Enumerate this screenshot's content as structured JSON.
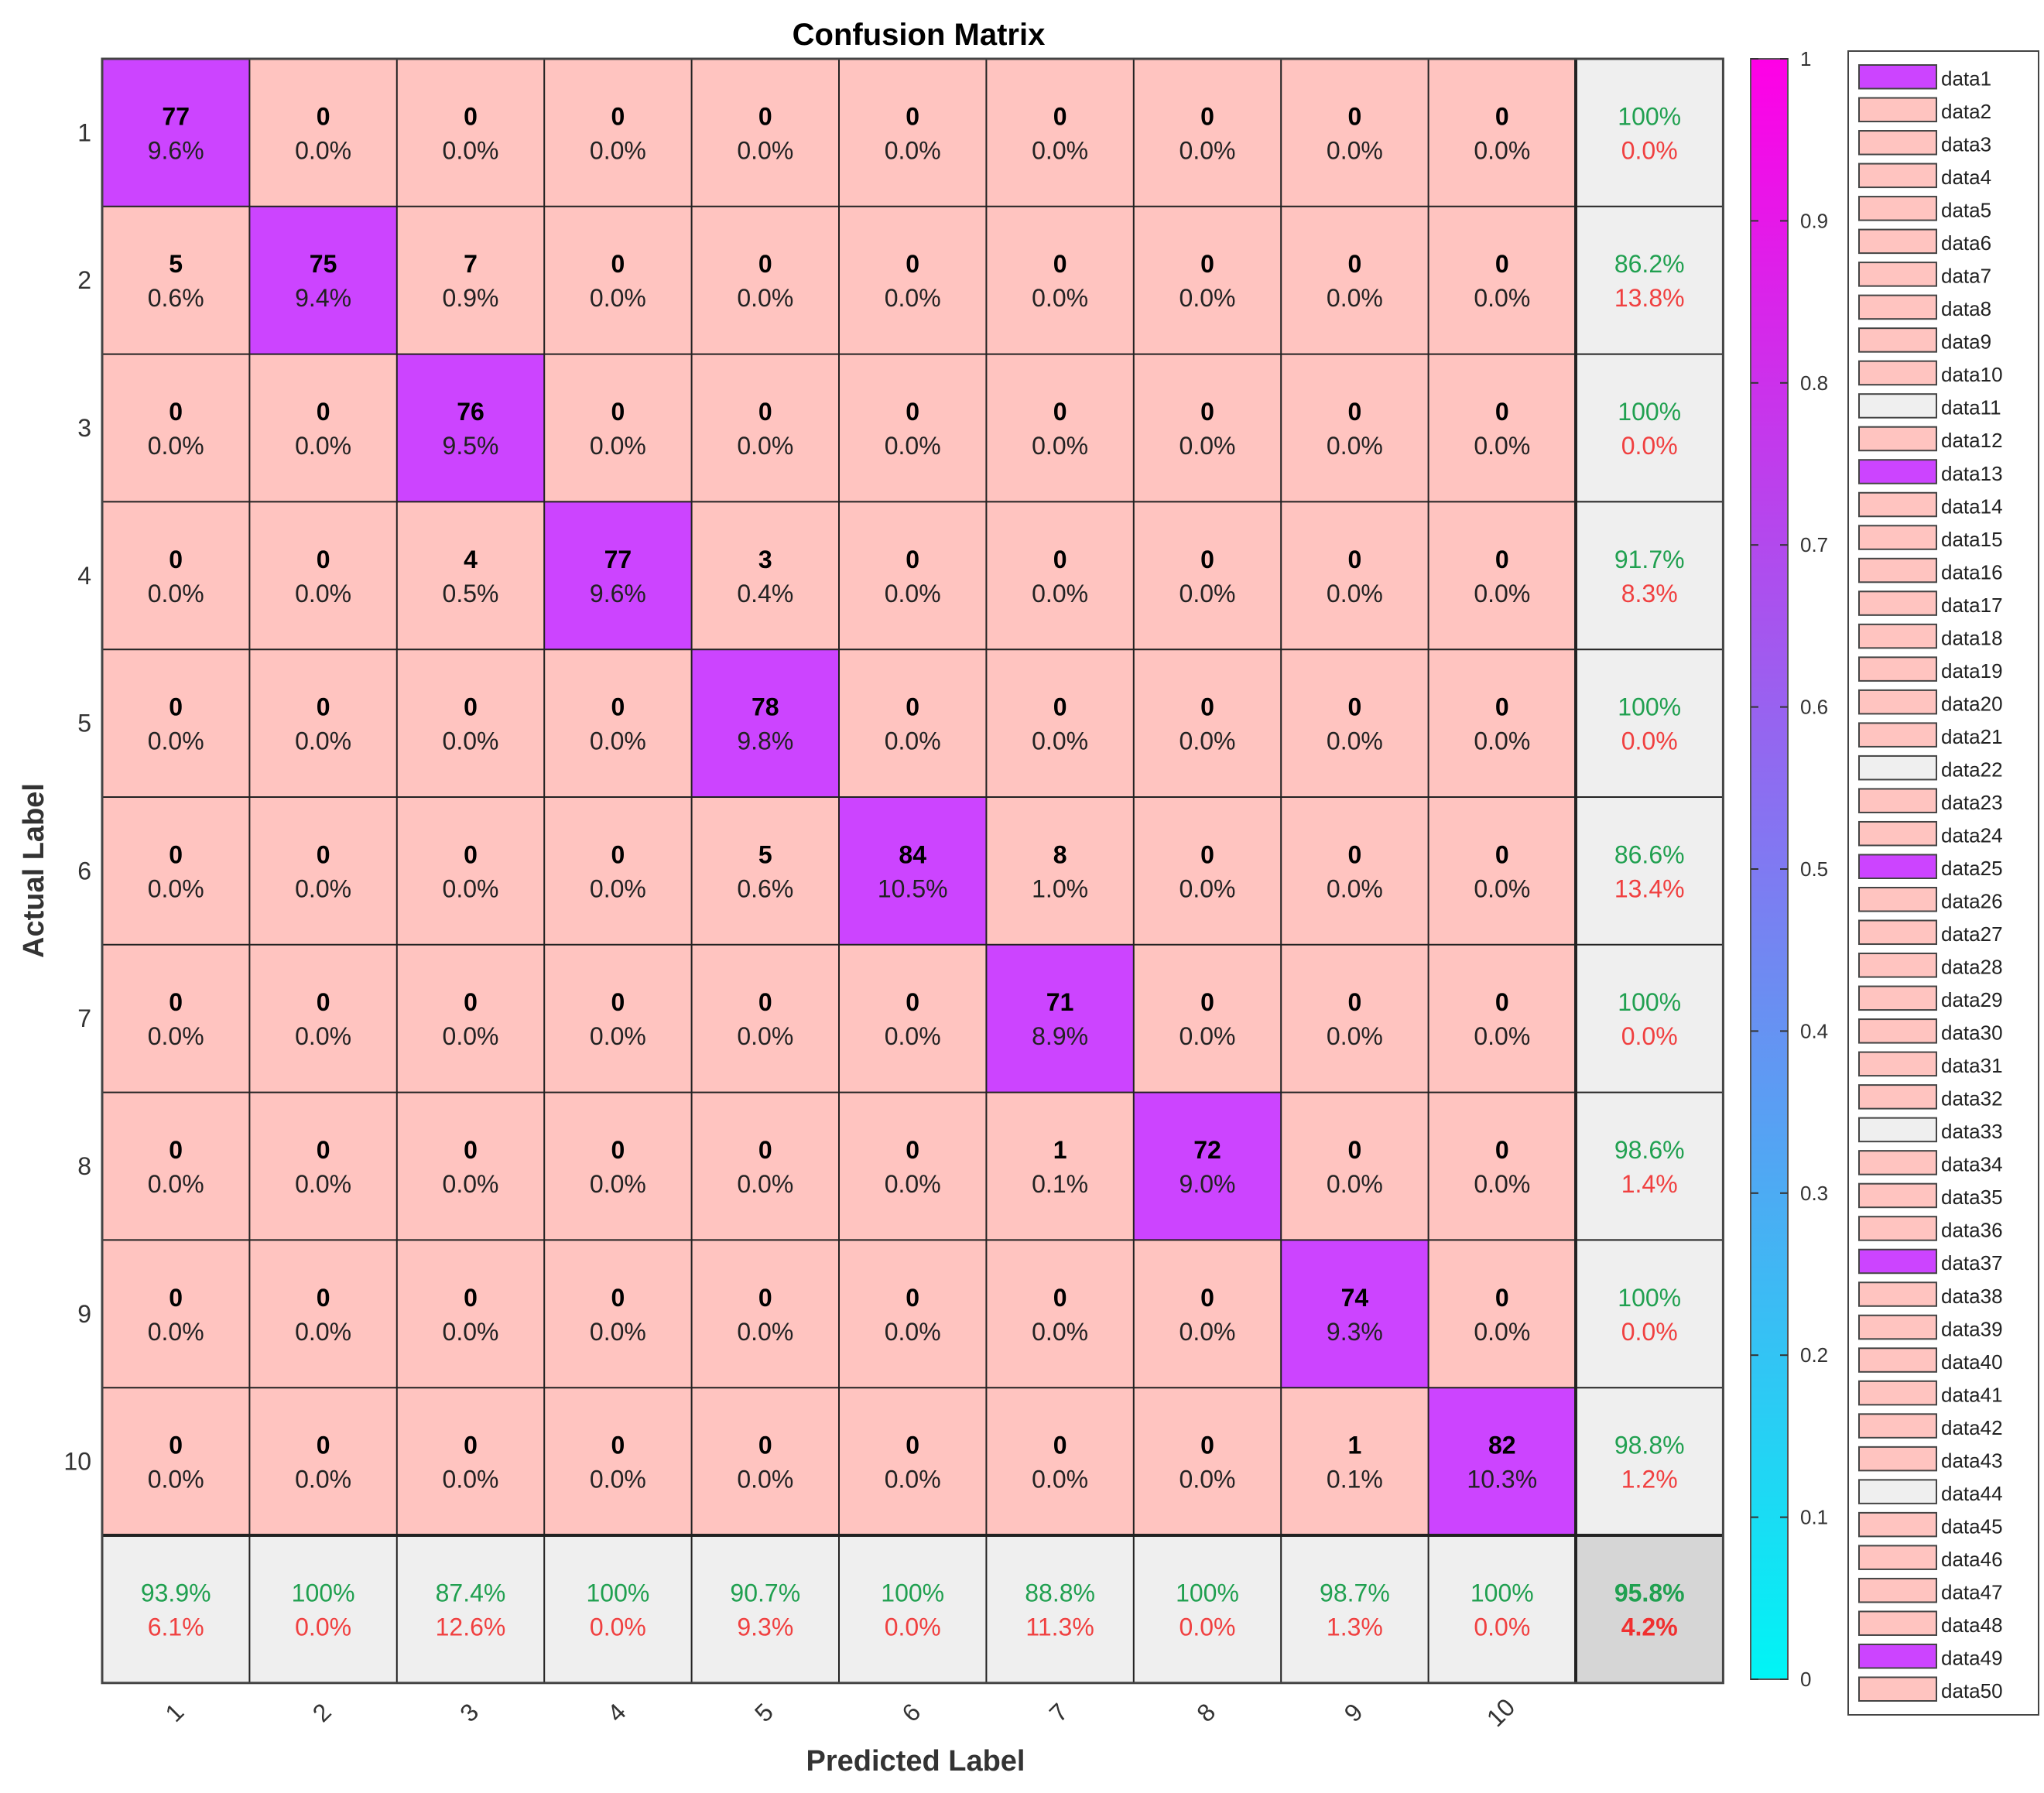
{
  "chart_data": {
    "type": "heatmap",
    "title": "Confusion Matrix",
    "xlabel": "Predicted Label",
    "ylabel": "Actual Label",
    "row_labels": [
      "1",
      "2",
      "3",
      "4",
      "5",
      "6",
      "7",
      "8",
      "9",
      "10"
    ],
    "col_labels": [
      "1",
      "2",
      "3",
      "4",
      "5",
      "6",
      "7",
      "8",
      "9",
      "10"
    ],
    "counts": [
      [
        77,
        0,
        0,
        0,
        0,
        0,
        0,
        0,
        0,
        0
      ],
      [
        5,
        75,
        7,
        0,
        0,
        0,
        0,
        0,
        0,
        0
      ],
      [
        0,
        0,
        76,
        0,
        0,
        0,
        0,
        0,
        0,
        0
      ],
      [
        0,
        0,
        4,
        77,
        3,
        0,
        0,
        0,
        0,
        0
      ],
      [
        0,
        0,
        0,
        0,
        78,
        0,
        0,
        0,
        0,
        0
      ],
      [
        0,
        0,
        0,
        0,
        5,
        84,
        8,
        0,
        0,
        0
      ],
      [
        0,
        0,
        0,
        0,
        0,
        0,
        71,
        0,
        0,
        0
      ],
      [
        0,
        0,
        0,
        0,
        0,
        0,
        1,
        72,
        0,
        0
      ],
      [
        0,
        0,
        0,
        0,
        0,
        0,
        0,
        0,
        74,
        0
      ],
      [
        0,
        0,
        0,
        0,
        0,
        0,
        0,
        0,
        1,
        82
      ]
    ],
    "percents": [
      [
        "9.6%",
        "0.0%",
        "0.0%",
        "0.0%",
        "0.0%",
        "0.0%",
        "0.0%",
        "0.0%",
        "0.0%",
        "0.0%"
      ],
      [
        "0.6%",
        "9.4%",
        "0.9%",
        "0.0%",
        "0.0%",
        "0.0%",
        "0.0%",
        "0.0%",
        "0.0%",
        "0.0%"
      ],
      [
        "0.0%",
        "0.0%",
        "9.5%",
        "0.0%",
        "0.0%",
        "0.0%",
        "0.0%",
        "0.0%",
        "0.0%",
        "0.0%"
      ],
      [
        "0.0%",
        "0.0%",
        "0.5%",
        "9.6%",
        "0.4%",
        "0.0%",
        "0.0%",
        "0.0%",
        "0.0%",
        "0.0%"
      ],
      [
        "0.0%",
        "0.0%",
        "0.0%",
        "0.0%",
        "9.8%",
        "0.0%",
        "0.0%",
        "0.0%",
        "0.0%",
        "0.0%"
      ],
      [
        "0.0%",
        "0.0%",
        "0.0%",
        "0.0%",
        "0.6%",
        "10.5%",
        "1.0%",
        "0.0%",
        "0.0%",
        "0.0%"
      ],
      [
        "0.0%",
        "0.0%",
        "0.0%",
        "0.0%",
        "0.0%",
        "0.0%",
        "8.9%",
        "0.0%",
        "0.0%",
        "0.0%"
      ],
      [
        "0.0%",
        "0.0%",
        "0.0%",
        "0.0%",
        "0.0%",
        "0.0%",
        "0.1%",
        "9.0%",
        "0.0%",
        "0.0%"
      ],
      [
        "0.0%",
        "0.0%",
        "0.0%",
        "0.0%",
        "0.0%",
        "0.0%",
        "0.0%",
        "0.0%",
        "9.3%",
        "0.0%"
      ],
      [
        "0.0%",
        "0.0%",
        "0.0%",
        "0.0%",
        "0.0%",
        "0.0%",
        "0.0%",
        "0.0%",
        "0.1%",
        "10.3%"
      ]
    ],
    "row_summary": [
      {
        "correct": "100%",
        "error": "0.0%"
      },
      {
        "correct": "86.2%",
        "error": "13.8%"
      },
      {
        "correct": "100%",
        "error": "0.0%"
      },
      {
        "correct": "91.7%",
        "error": "8.3%"
      },
      {
        "correct": "100%",
        "error": "0.0%"
      },
      {
        "correct": "86.6%",
        "error": "13.4%"
      },
      {
        "correct": "100%",
        "error": "0.0%"
      },
      {
        "correct": "98.6%",
        "error": "1.4%"
      },
      {
        "correct": "100%",
        "error": "0.0%"
      },
      {
        "correct": "98.8%",
        "error": "1.2%"
      }
    ],
    "col_summary": [
      {
        "correct": "93.9%",
        "error": "6.1%"
      },
      {
        "correct": "100%",
        "error": "0.0%"
      },
      {
        "correct": "87.4%",
        "error": "12.6%"
      },
      {
        "correct": "100%",
        "error": "0.0%"
      },
      {
        "correct": "90.7%",
        "error": "9.3%"
      },
      {
        "correct": "100%",
        "error": "0.0%"
      },
      {
        "correct": "88.8%",
        "error": "11.3%"
      },
      {
        "correct": "100%",
        "error": "0.0%"
      },
      {
        "correct": "98.7%",
        "error": "1.3%"
      },
      {
        "correct": "100%",
        "error": "0.0%"
      }
    ],
    "overall": {
      "correct": "95.8%",
      "error": "4.2%"
    },
    "colorbar": {
      "range": [
        0,
        1
      ],
      "ticks": [
        "0",
        "0.1",
        "0.2",
        "0.3",
        "0.4",
        "0.5",
        "0.6",
        "0.7",
        "0.8",
        "0.9",
        "1"
      ],
      "color_low": "#00f5f5",
      "color_high": "#ff00e6"
    },
    "colors": {
      "diagonal": "#cc44ff",
      "off_diagonal": "#ffc4c0",
      "summary": "#efefef",
      "overall": "#d6d6d6"
    },
    "legend": {
      "entries": [
        {
          "label": "data1",
          "kind": "diagonal"
        },
        {
          "label": "data2",
          "kind": "off"
        },
        {
          "label": "data3",
          "kind": "off"
        },
        {
          "label": "data4",
          "kind": "off"
        },
        {
          "label": "data5",
          "kind": "off"
        },
        {
          "label": "data6",
          "kind": "off"
        },
        {
          "label": "data7",
          "kind": "off"
        },
        {
          "label": "data8",
          "kind": "off"
        },
        {
          "label": "data9",
          "kind": "off"
        },
        {
          "label": "data10",
          "kind": "off"
        },
        {
          "label": "data11",
          "kind": "summary"
        },
        {
          "label": "data12",
          "kind": "off"
        },
        {
          "label": "data13",
          "kind": "diagonal"
        },
        {
          "label": "data14",
          "kind": "off"
        },
        {
          "label": "data15",
          "kind": "off"
        },
        {
          "label": "data16",
          "kind": "off"
        },
        {
          "label": "data17",
          "kind": "off"
        },
        {
          "label": "data18",
          "kind": "off"
        },
        {
          "label": "data19",
          "kind": "off"
        },
        {
          "label": "data20",
          "kind": "off"
        },
        {
          "label": "data21",
          "kind": "off"
        },
        {
          "label": "data22",
          "kind": "summary"
        },
        {
          "label": "data23",
          "kind": "off"
        },
        {
          "label": "data24",
          "kind": "off"
        },
        {
          "label": "data25",
          "kind": "diagonal"
        },
        {
          "label": "data26",
          "kind": "off"
        },
        {
          "label": "data27",
          "kind": "off"
        },
        {
          "label": "data28",
          "kind": "off"
        },
        {
          "label": "data29",
          "kind": "off"
        },
        {
          "label": "data30",
          "kind": "off"
        },
        {
          "label": "data31",
          "kind": "off"
        },
        {
          "label": "data32",
          "kind": "off"
        },
        {
          "label": "data33",
          "kind": "summary"
        },
        {
          "label": "data34",
          "kind": "off"
        },
        {
          "label": "data35",
          "kind": "off"
        },
        {
          "label": "data36",
          "kind": "off"
        },
        {
          "label": "data37",
          "kind": "diagonal"
        },
        {
          "label": "data38",
          "kind": "off"
        },
        {
          "label": "data39",
          "kind": "off"
        },
        {
          "label": "data40",
          "kind": "off"
        },
        {
          "label": "data41",
          "kind": "off"
        },
        {
          "label": "data42",
          "kind": "off"
        },
        {
          "label": "data43",
          "kind": "off"
        },
        {
          "label": "data44",
          "kind": "summary"
        },
        {
          "label": "data45",
          "kind": "off"
        },
        {
          "label": "data46",
          "kind": "off"
        },
        {
          "label": "data47",
          "kind": "off"
        },
        {
          "label": "data48",
          "kind": "off"
        },
        {
          "label": "data49",
          "kind": "diagonal"
        },
        {
          "label": "data50",
          "kind": "off"
        }
      ]
    }
  }
}
